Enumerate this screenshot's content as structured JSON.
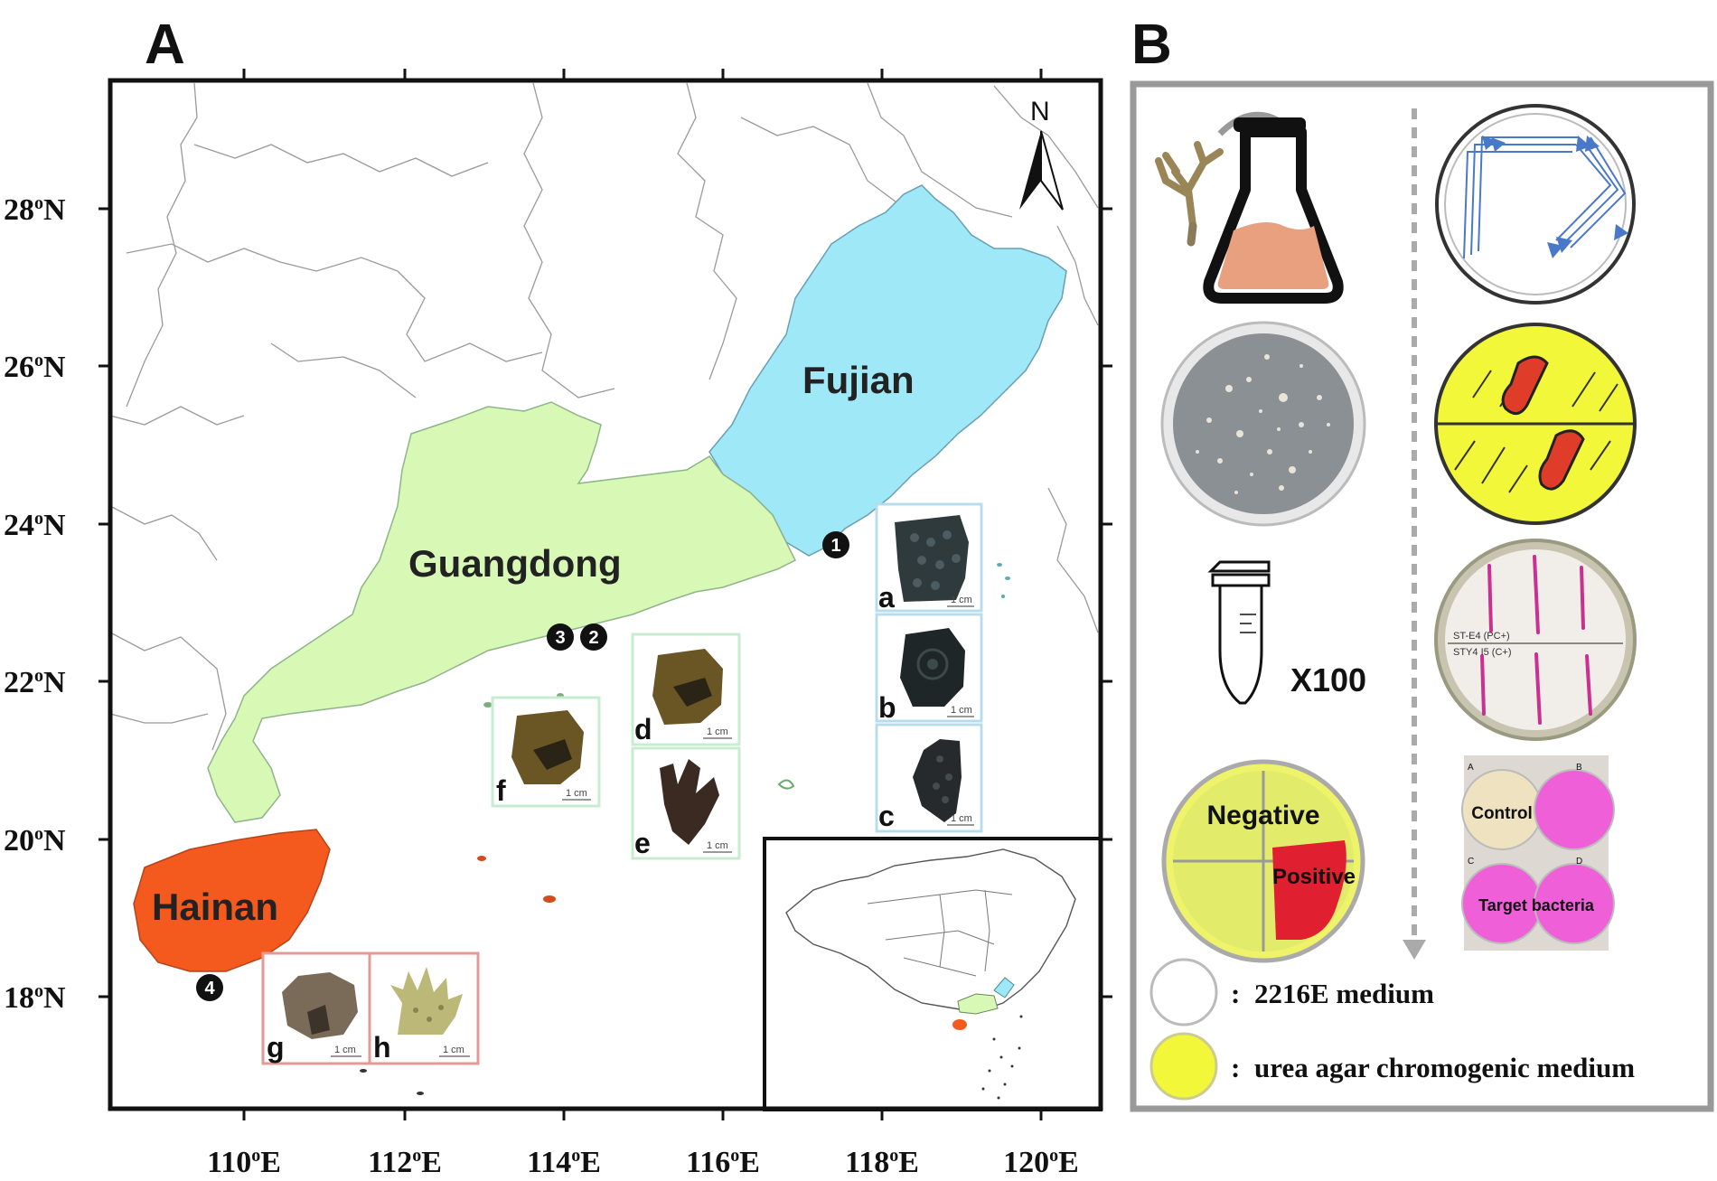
{
  "panels": {
    "a_label": "A",
    "b_label": "B"
  },
  "map": {
    "lat_labels": [
      "28",
      "26",
      "24",
      "22",
      "20",
      "18"
    ],
    "lat_suffix": "N",
    "lon_labels": [
      "110",
      "112",
      "114",
      "116",
      "118",
      "120"
    ],
    "lon_suffix": "E",
    "degree_mark": "o",
    "north_label": "N",
    "provinces": [
      {
        "name": "Fujian",
        "color": "#9ee8f8"
      },
      {
        "name": "Guangdong",
        "color": "#d7f9b5"
      },
      {
        "name": "Hainan",
        "color": "#f45a1e"
      }
    ],
    "sites": [
      "1",
      "2",
      "3",
      "4"
    ],
    "specimens": [
      {
        "letter": "a",
        "scale": "1 cm",
        "frame": "#b8dcec"
      },
      {
        "letter": "b",
        "scale": "1 cm",
        "frame": "#b8dcec"
      },
      {
        "letter": "c",
        "scale": "1 cm",
        "frame": "#b8dcec"
      },
      {
        "letter": "d",
        "scale": "1 cm",
        "frame": "#c8ecd2"
      },
      {
        "letter": "e",
        "scale": "1 cm",
        "frame": "#c8ecd2"
      },
      {
        "letter": "f",
        "scale": "1 cm",
        "frame": "#c8ecd2"
      },
      {
        "letter": "g",
        "scale": "1 cm",
        "frame": "#e49a94"
      },
      {
        "letter": "h",
        "scale": "1 cm",
        "frame": "#e49a94"
      }
    ]
  },
  "workflow": {
    "tube_multiplier": "X100",
    "negative_label": "Negative",
    "positive_label": "Positive",
    "streak_plate_marks": [
      "ST-E4 (PC+)",
      "STY4 I5 (C+)"
    ],
    "plate_labels": [
      "A",
      "B",
      "C",
      "D"
    ],
    "control_label": "Control",
    "target_label": "Target bacteria",
    "legend": [
      {
        "symbol_color": "#ffffff",
        "separator": ":",
        "text": "2216E medium"
      },
      {
        "symbol_color": "#f2f73a",
        "separator": ":",
        "text": "urea agar chromogenic medium"
      }
    ]
  }
}
